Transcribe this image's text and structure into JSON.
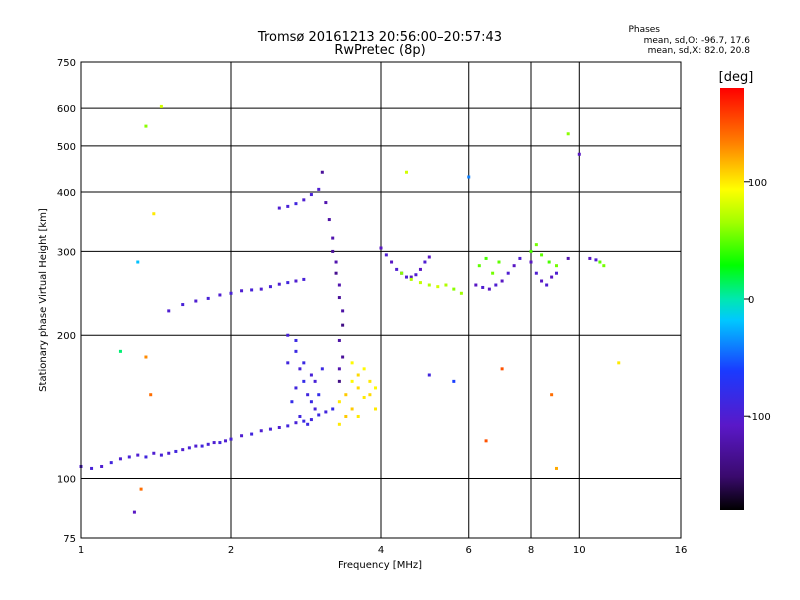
{
  "chart_data": {
    "type": "scatter",
    "title": "Tromsø 20161213 20:56:00–20:57:43",
    "subtitle": "RwPretec (8p)",
    "xlabel": "Frequency [MHz]",
    "ylabel": "Stationary phase Virtual Height [km]",
    "x_scale": "log",
    "y_scale": "log",
    "xlim": [
      1,
      16
    ],
    "ylim": [
      75,
      750
    ],
    "x_ticks": [
      "1",
      "2",
      "4",
      "6",
      "8",
      "10",
      "16"
    ],
    "y_ticks": [
      "75",
      "100",
      "200",
      "300",
      "400",
      "500",
      "600",
      "750"
    ],
    "grid": true,
    "stats": {
      "heading": "Phases",
      "line_o": "mean, sd,O: -96.7, 17.6",
      "line_x": "mean, sd,X:  82.0, 20.8"
    },
    "colorbar": {
      "label": "[deg]",
      "ticks": [
        "100",
        "0",
        "-100"
      ],
      "tick_values": [
        100,
        0,
        -100
      ],
      "range": [
        -180,
        180
      ]
    },
    "series": [
      {
        "points": [
          [
            1.0,
            106,
            -100
          ],
          [
            1.05,
            105,
            -95
          ],
          [
            1.1,
            106,
            -100
          ],
          [
            1.15,
            108,
            -90
          ],
          [
            1.2,
            110,
            -100
          ],
          [
            1.25,
            111,
            -95
          ],
          [
            1.3,
            112,
            -100
          ],
          [
            1.35,
            111,
            -90
          ],
          [
            1.4,
            113,
            -100
          ],
          [
            1.45,
            112,
            -95
          ],
          [
            1.5,
            113,
            -100
          ],
          [
            1.55,
            114,
            -90
          ],
          [
            1.6,
            115,
            -100
          ],
          [
            1.65,
            116,
            -95
          ],
          [
            1.7,
            117,
            -100
          ],
          [
            1.75,
            117,
            -90
          ],
          [
            1.8,
            118,
            -95
          ],
          [
            1.85,
            119,
            -100
          ],
          [
            1.9,
            119,
            -90
          ],
          [
            1.95,
            120,
            -100
          ],
          [
            2.0,
            121,
            -95
          ],
          [
            2.1,
            123,
            -100
          ],
          [
            2.2,
            124,
            -90
          ],
          [
            2.3,
            126,
            -100
          ],
          [
            2.4,
            127,
            -95
          ],
          [
            2.5,
            128,
            -100
          ],
          [
            2.6,
            129,
            -90
          ],
          [
            2.7,
            131,
            -95
          ],
          [
            2.8,
            132,
            -85
          ],
          [
            2.9,
            133,
            -90
          ],
          [
            3.0,
            136,
            -85
          ],
          [
            3.1,
            138,
            -90
          ],
          [
            3.2,
            140,
            -80
          ]
        ]
      },
      {
        "points": [
          [
            1.5,
            225,
            -100
          ],
          [
            1.6,
            232,
            -95
          ],
          [
            1.7,
            236,
            -100
          ],
          [
            1.8,
            239,
            -95
          ],
          [
            1.9,
            243,
            -100
          ],
          [
            2.0,
            245,
            -95
          ],
          [
            2.1,
            248,
            -100
          ],
          [
            2.2,
            249,
            -95
          ],
          [
            2.3,
            250,
            -100
          ],
          [
            2.4,
            253,
            -95
          ],
          [
            2.5,
            256,
            -100
          ],
          [
            2.6,
            258,
            -90
          ],
          [
            2.7,
            260,
            -100
          ],
          [
            2.8,
            262,
            -95
          ]
        ]
      },
      {
        "points": [
          [
            2.5,
            370,
            -100
          ],
          [
            2.6,
            373,
            -95
          ],
          [
            2.7,
            378,
            -90
          ],
          [
            2.8,
            385,
            -100
          ],
          [
            2.9,
            395,
            -95
          ],
          [
            3.0,
            405,
            -100
          ],
          [
            3.05,
            440,
            -130
          ]
        ]
      },
      {
        "points": [
          [
            3.1,
            380,
            -120
          ],
          [
            3.15,
            350,
            -125
          ],
          [
            3.2,
            320,
            -120
          ],
          [
            3.2,
            300,
            -130
          ],
          [
            3.25,
            285,
            -120
          ],
          [
            3.25,
            270,
            -135
          ],
          [
            3.3,
            255,
            -120
          ],
          [
            3.3,
            240,
            -130
          ],
          [
            3.35,
            225,
            -125
          ],
          [
            3.35,
            210,
            -140
          ],
          [
            3.3,
            195,
            -125
          ],
          [
            3.35,
            180,
            -130
          ],
          [
            3.3,
            170,
            -120
          ],
          [
            3.3,
            160,
            -140
          ]
        ]
      },
      {
        "points": [
          [
            2.6,
            200,
            -95
          ],
          [
            2.7,
            185,
            -85
          ],
          [
            2.75,
            170,
            -95
          ],
          [
            2.8,
            160,
            -80
          ],
          [
            2.85,
            150,
            -90
          ],
          [
            2.9,
            145,
            -85
          ],
          [
            2.95,
            140,
            -95
          ],
          [
            3.0,
            150,
            -80
          ],
          [
            2.7,
            155,
            -90
          ],
          [
            2.8,
            175,
            -85
          ],
          [
            2.9,
            165,
            -95
          ],
          [
            2.65,
            145,
            -80
          ],
          [
            2.75,
            135,
            -90
          ],
          [
            2.85,
            130,
            -85
          ],
          [
            2.95,
            160,
            -95
          ],
          [
            3.05,
            170,
            -85
          ],
          [
            2.6,
            175,
            -90
          ],
          [
            2.7,
            195,
            -85
          ]
        ]
      },
      {
        "points": [
          [
            3.3,
            145,
            100
          ],
          [
            3.4,
            150,
            110
          ],
          [
            3.5,
            160,
            95
          ],
          [
            3.6,
            155,
            105
          ],
          [
            3.7,
            148,
            100
          ],
          [
            3.5,
            140,
            110
          ],
          [
            3.6,
            135,
            100
          ],
          [
            3.7,
            170,
            95
          ],
          [
            3.8,
            150,
            105
          ],
          [
            3.9,
            140,
            100
          ],
          [
            3.4,
            135,
            110
          ],
          [
            3.5,
            175,
            95
          ],
          [
            3.8,
            160,
            100
          ],
          [
            3.6,
            165,
            105
          ],
          [
            3.9,
            155,
            95
          ],
          [
            3.3,
            130,
            100
          ]
        ]
      },
      {
        "points": [
          [
            4.0,
            305,
            -110
          ],
          [
            4.1,
            295,
            -100
          ],
          [
            4.2,
            285,
            -110
          ],
          [
            4.3,
            275,
            -100
          ],
          [
            4.4,
            270,
            -110
          ],
          [
            4.5,
            265,
            -100
          ],
          [
            4.6,
            265,
            -110
          ],
          [
            4.7,
            268,
            -100
          ],
          [
            4.8,
            275,
            -110
          ],
          [
            4.9,
            285,
            -100
          ],
          [
            5.0,
            292,
            -110
          ]
        ]
      },
      {
        "points": [
          [
            4.4,
            270,
            60
          ],
          [
            4.6,
            262,
            70
          ],
          [
            4.8,
            258,
            75
          ],
          [
            5.0,
            255,
            70
          ],
          [
            5.2,
            253,
            80
          ],
          [
            5.4,
            255,
            70
          ],
          [
            5.6,
            250,
            60
          ],
          [
            5.8,
            245,
            65
          ]
        ]
      },
      {
        "points": [
          [
            6.2,
            255,
            -110
          ],
          [
            6.4,
            252,
            -100
          ],
          [
            6.6,
            250,
            -110
          ],
          [
            6.8,
            255,
            -100
          ],
          [
            7.0,
            260,
            -110
          ],
          [
            7.2,
            270,
            -100
          ],
          [
            7.4,
            280,
            -110
          ],
          [
            7.6,
            290,
            -100
          ]
        ]
      },
      {
        "points": [
          [
            6.3,
            280,
            50
          ],
          [
            6.5,
            290,
            45
          ],
          [
            6.7,
            270,
            55
          ],
          [
            6.9,
            285,
            50
          ],
          [
            8.0,
            300,
            45
          ],
          [
            8.2,
            310,
            55
          ],
          [
            8.4,
            295,
            50
          ],
          [
            8.7,
            285,
            45
          ],
          [
            9.0,
            280,
            55
          ],
          [
            11.0,
            285,
            50
          ],
          [
            11.2,
            280,
            55
          ]
        ]
      },
      {
        "points": [
          [
            8.0,
            285,
            -110
          ],
          [
            8.2,
            270,
            -100
          ],
          [
            8.4,
            260,
            -110
          ],
          [
            8.6,
            255,
            -100
          ],
          [
            8.8,
            265,
            -110
          ],
          [
            9.0,
            270,
            -100
          ],
          [
            9.5,
            290,
            -120
          ],
          [
            10.5,
            290,
            -110
          ],
          [
            10.8,
            288,
            -100
          ]
        ]
      },
      {
        "points": [
          [
            1.35,
            550,
            60
          ],
          [
            1.45,
            605,
            80
          ],
          [
            1.2,
            185,
            10
          ],
          [
            1.3,
            285,
            -20
          ],
          [
            1.35,
            180,
            130
          ],
          [
            1.38,
            150,
            140
          ],
          [
            1.32,
            95,
            140
          ],
          [
            1.28,
            85,
            -110
          ],
          [
            1.4,
            360,
            100
          ],
          [
            4.5,
            440,
            80
          ],
          [
            5.0,
            165,
            -90
          ],
          [
            5.6,
            160,
            -60
          ],
          [
            6.0,
            430,
            -40
          ],
          [
            6.5,
            120,
            150
          ],
          [
            7.0,
            170,
            150
          ],
          [
            8.8,
            150,
            140
          ],
          [
            9.0,
            105,
            120
          ],
          [
            9.5,
            530,
            60
          ],
          [
            10.0,
            480,
            -110
          ],
          [
            12.0,
            175,
            100
          ]
        ]
      }
    ]
  }
}
